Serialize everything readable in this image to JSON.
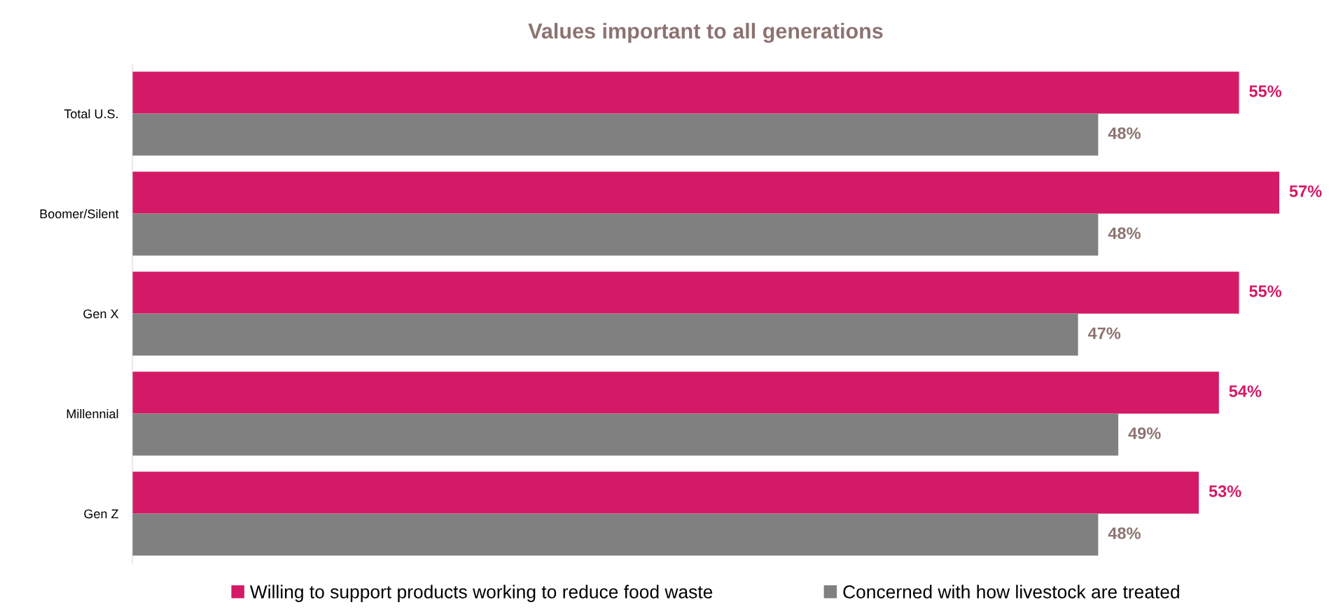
{
  "chart_data": {
    "type": "bar",
    "orientation": "horizontal",
    "title": "Values important to all generations",
    "categories": [
      "Total U.S.",
      "Boomer/Silent",
      "Gen X",
      "Millennial",
      "Gen Z"
    ],
    "series": [
      {
        "name": "Willing to support products working to reduce food waste",
        "color": "#d41a66",
        "values": [
          55,
          57,
          55,
          54,
          53
        ],
        "value_labels": [
          "55%",
          "57%",
          "55%",
          "54%",
          "53%"
        ]
      },
      {
        "name": "Concerned with how livestock are treated",
        "color": "#808080",
        "values": [
          48,
          48,
          47,
          49,
          48
        ],
        "value_labels": [
          "48%",
          "48%",
          "47%",
          "49%",
          "48%"
        ]
      }
    ],
    "tick_labels": "y",
    "grid": false,
    "legend": "bottom"
  }
}
